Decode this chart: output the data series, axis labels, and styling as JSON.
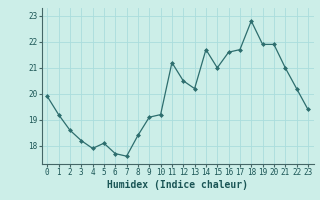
{
  "x": [
    0,
    1,
    2,
    3,
    4,
    5,
    6,
    7,
    8,
    9,
    10,
    11,
    12,
    13,
    14,
    15,
    16,
    17,
    18,
    19,
    20,
    21,
    22,
    23
  ],
  "y": [
    19.9,
    19.2,
    18.6,
    18.2,
    17.9,
    18.1,
    17.7,
    17.6,
    18.4,
    19.1,
    19.2,
    21.2,
    20.5,
    20.2,
    21.7,
    21.0,
    21.6,
    21.7,
    22.8,
    21.9,
    21.9,
    21.0,
    20.2,
    19.4
  ],
  "line_color": "#2d6e6e",
  "marker": "D",
  "marker_size": 2.0,
  "bg_color": "#cceee8",
  "grid_color": "#aadddd",
  "xlabel": "Humidex (Indice chaleur)",
  "ylim": [
    17.3,
    23.3
  ],
  "xlim": [
    -0.5,
    23.5
  ],
  "yticks": [
    18,
    19,
    20,
    21,
    22,
    23
  ],
  "xticks": [
    0,
    1,
    2,
    3,
    4,
    5,
    6,
    7,
    8,
    9,
    10,
    11,
    12,
    13,
    14,
    15,
    16,
    17,
    18,
    19,
    20,
    21,
    22,
    23
  ],
  "tick_label_fontsize": 5.5,
  "xlabel_fontsize": 7.0
}
